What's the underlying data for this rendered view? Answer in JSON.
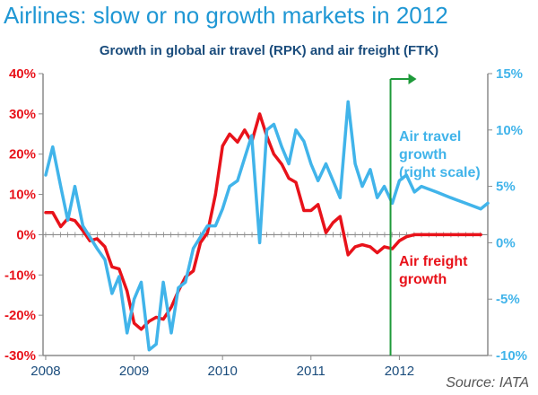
{
  "header": {
    "title": "Airlines: slow or no growth markets in 2012",
    "subtitle": "Growth in global air travel (RPK) and air freight (FTK)"
  },
  "footer": {
    "source": "Source: IATA"
  },
  "colors": {
    "freight": "#e8121a",
    "travel": "#41b4ea",
    "forecast_marker": "#1e9a3a",
    "axis": "#8a8a8a"
  },
  "chart_data": {
    "type": "line",
    "x_ticks": [
      "2008",
      "2009",
      "2010",
      "2011",
      "2012"
    ],
    "left_axis": {
      "ylim": [
        -30,
        40
      ],
      "ticks": [
        "40%",
        "30%",
        "20%",
        "10%",
        "0%",
        "-10%",
        "-20%",
        "-30%"
      ]
    },
    "right_axis": {
      "ylim": [
        -10,
        15
      ],
      "ticks": [
        "15%",
        "10%",
        "5%",
        "0%",
        "-5%",
        "-10%"
      ]
    },
    "series": [
      {
        "name": "Air freight growth",
        "label_lines": [
          "Air freight",
          "growth"
        ],
        "axis": "left",
        "points": [
          [
            2008.0,
            5.5
          ],
          [
            2008.08,
            5.5
          ],
          [
            2008.17,
            2.0
          ],
          [
            2008.25,
            4.0
          ],
          [
            2008.33,
            3.5
          ],
          [
            2008.42,
            1.0
          ],
          [
            2008.5,
            -1.5
          ],
          [
            2008.58,
            -1.0
          ],
          [
            2008.67,
            -3.0
          ],
          [
            2008.75,
            -8.0
          ],
          [
            2008.83,
            -8.5
          ],
          [
            2008.92,
            -14.0
          ],
          [
            2009.0,
            -22.0
          ],
          [
            2009.08,
            -23.5
          ],
          [
            2009.17,
            -21.5
          ],
          [
            2009.25,
            -20.5
          ],
          [
            2009.33,
            -21.0
          ],
          [
            2009.42,
            -18.0
          ],
          [
            2009.5,
            -14.0
          ],
          [
            2009.58,
            -10.5
          ],
          [
            2009.67,
            -9.0
          ],
          [
            2009.75,
            -2.0
          ],
          [
            2009.83,
            0.5
          ],
          [
            2009.92,
            10.0
          ],
          [
            2010.0,
            22.0
          ],
          [
            2010.08,
            25.0
          ],
          [
            2010.17,
            23.0
          ],
          [
            2010.25,
            26.0
          ],
          [
            2010.33,
            23.0
          ],
          [
            2010.42,
            30.0
          ],
          [
            2010.5,
            24.5
          ],
          [
            2010.58,
            20.0
          ],
          [
            2010.67,
            17.5
          ],
          [
            2010.75,
            14.0
          ],
          [
            2010.83,
            13.0
          ],
          [
            2010.92,
            6.0
          ],
          [
            2011.0,
            6.0
          ],
          [
            2011.08,
            7.5
          ],
          [
            2011.17,
            0.5
          ],
          [
            2011.25,
            3.0
          ],
          [
            2011.33,
            4.5
          ],
          [
            2011.42,
            -5.0
          ],
          [
            2011.5,
            -3.0
          ],
          [
            2011.58,
            -2.5
          ],
          [
            2011.67,
            -3.0
          ],
          [
            2011.75,
            -4.5
          ],
          [
            2011.83,
            -3.0
          ],
          [
            2011.92,
            -3.5
          ],
          [
            2012.0,
            -1.5
          ],
          [
            2012.08,
            -0.5
          ],
          [
            2012.17,
            0.0
          ],
          [
            2012.5,
            0.0
          ],
          [
            2012.92,
            0.0
          ]
        ]
      },
      {
        "name": "Air travel growth (right scale)",
        "label_lines": [
          "Air travel",
          "growth",
          "(right scale)"
        ],
        "axis": "right",
        "points": [
          [
            2008.0,
            6.0
          ],
          [
            2008.08,
            8.5
          ],
          [
            2008.17,
            5.0
          ],
          [
            2008.25,
            2.0
          ],
          [
            2008.33,
            5.0
          ],
          [
            2008.42,
            1.5
          ],
          [
            2008.5,
            0.5
          ],
          [
            2008.58,
            -0.5
          ],
          [
            2008.67,
            -1.5
          ],
          [
            2008.75,
            -4.5
          ],
          [
            2008.83,
            -3.0
          ],
          [
            2008.92,
            -8.0
          ],
          [
            2009.0,
            -5.0
          ],
          [
            2009.08,
            -3.5
          ],
          [
            2009.17,
            -9.5
          ],
          [
            2009.25,
            -9.0
          ],
          [
            2009.33,
            -3.5
          ],
          [
            2009.42,
            -8.0
          ],
          [
            2009.5,
            -4.0
          ],
          [
            2009.58,
            -3.5
          ],
          [
            2009.67,
            -0.5
          ],
          [
            2009.75,
            0.5
          ],
          [
            2009.83,
            1.5
          ],
          [
            2009.92,
            1.5
          ],
          [
            2010.0,
            3.0
          ],
          [
            2010.08,
            5.0
          ],
          [
            2010.17,
            5.5
          ],
          [
            2010.25,
            7.5
          ],
          [
            2010.33,
            9.5
          ],
          [
            2010.42,
            0.0
          ],
          [
            2010.5,
            10.0
          ],
          [
            2010.58,
            10.5
          ],
          [
            2010.67,
            8.5
          ],
          [
            2010.75,
            7.0
          ],
          [
            2010.83,
            10.0
          ],
          [
            2010.92,
            9.0
          ],
          [
            2011.0,
            7.0
          ],
          [
            2011.08,
            5.5
          ],
          [
            2011.17,
            7.0
          ],
          [
            2011.25,
            5.5
          ],
          [
            2011.33,
            4.0
          ],
          [
            2011.42,
            12.5
          ],
          [
            2011.5,
            7.0
          ],
          [
            2011.58,
            5.0
          ],
          [
            2011.67,
            6.5
          ],
          [
            2011.75,
            4.0
          ],
          [
            2011.83,
            5.0
          ],
          [
            2011.92,
            3.5
          ],
          [
            2012.0,
            5.5
          ],
          [
            2012.08,
            6.0
          ],
          [
            2012.17,
            4.5
          ],
          [
            2012.25,
            5.0
          ],
          [
            2012.42,
            4.5
          ],
          [
            2012.58,
            4.0
          ],
          [
            2012.75,
            3.5
          ],
          [
            2012.92,
            3.0
          ],
          [
            2013.0,
            3.5
          ]
        ]
      }
    ],
    "forecast_start": 2011.9,
    "grid": false,
    "legend": "inline labels"
  }
}
